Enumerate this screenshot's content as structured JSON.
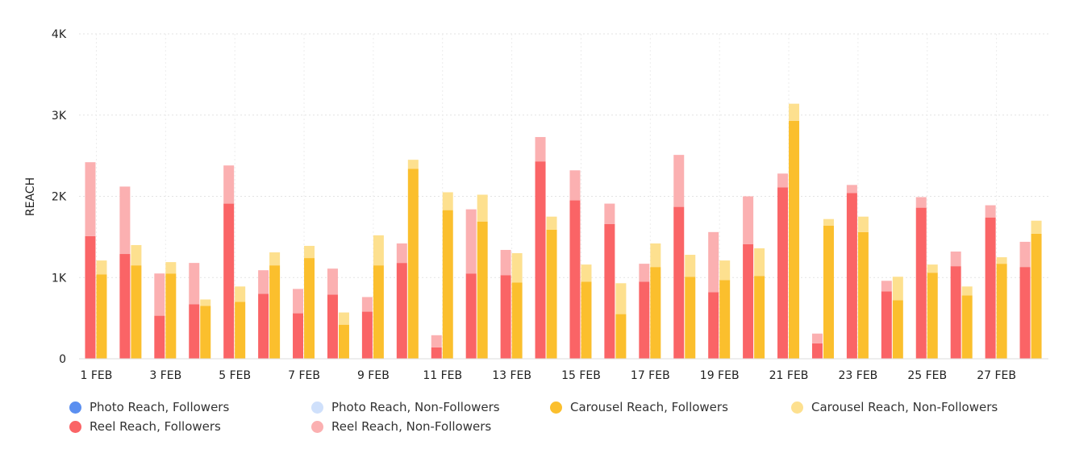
{
  "chart_data": {
    "type": "bar",
    "stacked": true,
    "title": "",
    "xlabel": "",
    "ylabel": "REACH",
    "ylim": [
      0,
      4000
    ],
    "yticks": [
      0,
      1000,
      2000,
      3000,
      4000
    ],
    "ytick_labels": [
      "0",
      "1K",
      "2K",
      "3K",
      "4K"
    ],
    "grid": true,
    "legend_placement": "bottom",
    "categories": [
      "1 FEB",
      "2 FEB",
      "3 FEB",
      "4 FEB",
      "5 FEB",
      "6 FEB",
      "7 FEB",
      "8 FEB",
      "9 FEB",
      "10 FEB",
      "11 FEB",
      "12 FEB",
      "13 FEB",
      "14 FEB",
      "15 FEB",
      "16 FEB",
      "17 FEB",
      "18 FEB",
      "19 FEB",
      "20 FEB",
      "21 FEB",
      "22 FEB",
      "23 FEB",
      "24 FEB",
      "25 FEB",
      "26 FEB",
      "27 FEB",
      "28 FEB"
    ],
    "xtick_labels": [
      "1 FEB",
      "3 FEB",
      "5 FEB",
      "7 FEB",
      "9 FEB",
      "11 FEB",
      "13 FEB",
      "15 FEB",
      "17 FEB",
      "19 FEB",
      "21 FEB",
      "23 FEB",
      "25 FEB",
      "27 FEB"
    ],
    "series": [
      {
        "name": "Photo Reach, Followers",
        "color": "#5b8ff0",
        "stack": "photo",
        "values": [
          0,
          0,
          0,
          0,
          0,
          0,
          0,
          0,
          0,
          0,
          0,
          0,
          0,
          0,
          0,
          0,
          0,
          0,
          0,
          0,
          0,
          0,
          0,
          0,
          0,
          0,
          0,
          0
        ]
      },
      {
        "name": "Photo Reach, Non-Followers",
        "color": "#cfe0fb",
        "stack": "photo",
        "values": [
          0,
          0,
          0,
          0,
          0,
          0,
          0,
          0,
          0,
          0,
          0,
          0,
          0,
          0,
          0,
          0,
          0,
          0,
          0,
          0,
          0,
          0,
          0,
          0,
          0,
          0,
          0,
          0
        ]
      },
      {
        "name": "Carousel Reach, Followers",
        "color": "#fbbf2d",
        "stack": "carousel",
        "values": [
          1040,
          1150,
          1050,
          650,
          700,
          1150,
          1240,
          420,
          1150,
          2340,
          1830,
          1690,
          940,
          1590,
          950,
          550,
          1130,
          1010,
          970,
          1020,
          2930,
          1640,
          1560,
          720,
          1060,
          780,
          1170,
          1540
        ]
      },
      {
        "name": "Carousel Reach, Non-Followers",
        "color": "#fde08f",
        "stack": "carousel",
        "values": [
          170,
          250,
          140,
          80,
          190,
          160,
          150,
          150,
          370,
          110,
          220,
          330,
          360,
          160,
          210,
          380,
          290,
          270,
          240,
          340,
          210,
          80,
          190,
          290,
          100,
          110,
          80,
          160
        ]
      },
      {
        "name": "Reel Reach, Followers",
        "color": "#fa6466",
        "stack": "reel",
        "values": [
          1510,
          1290,
          530,
          670,
          1910,
          800,
          560,
          790,
          580,
          1180,
          140,
          1050,
          1030,
          2430,
          1950,
          1660,
          950,
          1870,
          820,
          1410,
          2110,
          190,
          2040,
          830,
          1860,
          1140,
          1740,
          1130
        ]
      },
      {
        "name": "Reel Reach, Non-Followers",
        "color": "#fbb0b1",
        "stack": "reel",
        "values": [
          910,
          830,
          520,
          510,
          470,
          290,
          300,
          320,
          180,
          240,
          150,
          790,
          310,
          300,
          370,
          250,
          220,
          640,
          740,
          590,
          170,
          120,
          100,
          130,
          130,
          180,
          150,
          310
        ]
      }
    ]
  }
}
